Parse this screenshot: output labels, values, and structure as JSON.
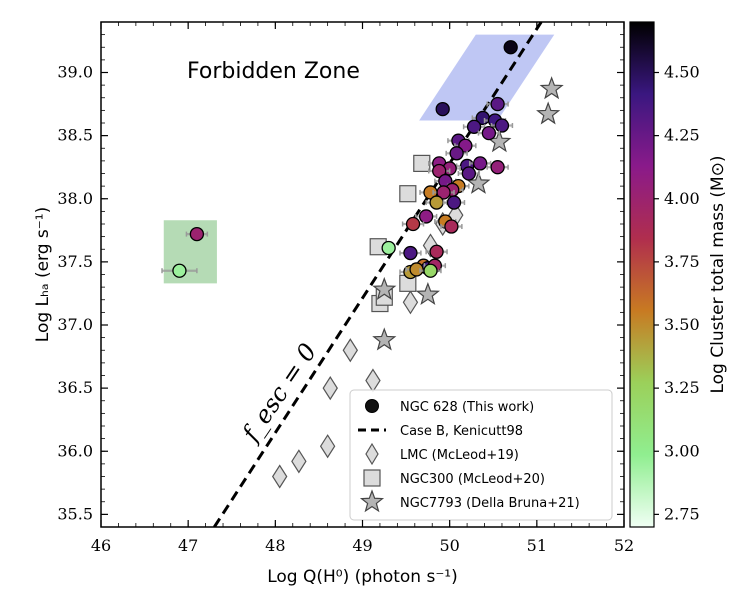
{
  "chart_data": {
    "type": "scatter",
    "xlabel": "Log Q(H⁰) (photon s⁻¹)",
    "ylabel": "Log Lₕₐ (erg s⁻¹)",
    "xlim": [
      46,
      52
    ],
    "ylim": [
      35.4,
      39.4
    ],
    "xticks": [
      46,
      47,
      48,
      49,
      50,
      51,
      52
    ],
    "yticks": [
      35.5,
      36.0,
      36.5,
      37.0,
      37.5,
      38.0,
      38.5,
      39.0
    ],
    "annotations": {
      "forbidden_zone": "Forbidden Zone",
      "fesc_label": "f_esc = 0"
    },
    "case_b_line": {
      "name": "Case B, Kenicutt98",
      "x": [
        47.3,
        51.05
      ],
      "y": [
        35.4,
        39.4
      ]
    },
    "shaded_regions": [
      {
        "color": "#aab4f0",
        "corners": [
          [
            49.65,
            38.62
          ],
          [
            50.55,
            38.62
          ],
          [
            51.2,
            39.3
          ],
          [
            50.3,
            39.3
          ]
        ]
      },
      {
        "color": "#9ccf9c",
        "corners": [
          [
            46.72,
            37.33
          ],
          [
            47.33,
            37.33
          ],
          [
            47.33,
            37.83
          ],
          [
            46.72,
            37.83
          ]
        ]
      }
    ],
    "colorbar": {
      "label": "Log Cluster total mass (M⊙)",
      "min": 2.7,
      "max": 4.7,
      "ticks": [
        2.75,
        3.0,
        3.25,
        3.5,
        3.75,
        4.0,
        4.25,
        4.5
      ],
      "tick_labels": [
        "2.75",
        "3.00",
        "3.25",
        "3.50",
        "3.75",
        "4.00",
        "4.25",
        "4.50"
      ],
      "stops": [
        "#f0fff4",
        "#90ee90",
        "#9bd05a",
        "#c87a22",
        "#b02e4e",
        "#8a1a8a",
        "#3a1780",
        "#000000"
      ]
    },
    "legend": {
      "position": "lower-right",
      "entries": [
        {
          "label": "NGC 628 (This work)",
          "marker": "circle"
        },
        {
          "label": "Case B, Kenicutt98",
          "marker": "dashed-line"
        },
        {
          "label": "LMC (McLeod+19)",
          "marker": "diamond"
        },
        {
          "label": "NGC300 (McLeod+20)",
          "marker": "square"
        },
        {
          "label": "NGC7793 (Della Bruna+21)",
          "marker": "star"
        }
      ]
    },
    "series": [
      {
        "name": "NGC 628 (This work)",
        "marker": "circle",
        "points": [
          {
            "x": 50.7,
            "y": 39.2,
            "m": 4.65,
            "xerr": 0.05
          },
          {
            "x": 49.92,
            "y": 38.71,
            "m": 4.5,
            "xerr": 0.05
          },
          {
            "x": 50.55,
            "y": 38.75,
            "m": 4.3,
            "xerr": 0.12
          },
          {
            "x": 50.38,
            "y": 38.64,
            "m": 4.45,
            "xerr": 0.12
          },
          {
            "x": 50.52,
            "y": 38.62,
            "m": 4.4,
            "xerr": 0.12
          },
          {
            "x": 50.6,
            "y": 38.58,
            "m": 4.35,
            "xerr": 0.12
          },
          {
            "x": 50.28,
            "y": 38.57,
            "m": 4.35,
            "xerr": 0.12
          },
          {
            "x": 50.45,
            "y": 38.52,
            "m": 4.2,
            "xerr": 0.12
          },
          {
            "x": 50.1,
            "y": 38.46,
            "m": 4.3,
            "xerr": 0.12
          },
          {
            "x": 50.18,
            "y": 38.42,
            "m": 4.15,
            "xerr": 0.12
          },
          {
            "x": 50.08,
            "y": 38.36,
            "m": 4.25,
            "xerr": 0.12
          },
          {
            "x": 49.88,
            "y": 38.28,
            "m": 4.1,
            "xerr": 0.12
          },
          {
            "x": 50.2,
            "y": 38.26,
            "m": 4.35,
            "xerr": 0.12
          },
          {
            "x": 50.35,
            "y": 38.28,
            "m": 4.2,
            "xerr": 0.12
          },
          {
            "x": 50.0,
            "y": 38.24,
            "m": 4.05,
            "xerr": 0.12
          },
          {
            "x": 49.88,
            "y": 38.22,
            "m": 4.0,
            "xerr": 0.12
          },
          {
            "x": 50.55,
            "y": 38.25,
            "m": 4.05,
            "xerr": 0.12
          },
          {
            "x": 50.22,
            "y": 38.2,
            "m": 4.3,
            "xerr": 0.12
          },
          {
            "x": 49.95,
            "y": 38.14,
            "m": 4.2,
            "xerr": 0.12
          },
          {
            "x": 50.1,
            "y": 38.1,
            "m": 3.55,
            "xerr": 0.12
          },
          {
            "x": 49.78,
            "y": 38.05,
            "m": 3.55,
            "xerr": 0.12
          },
          {
            "x": 50.03,
            "y": 38.07,
            "m": 4.0,
            "xerr": 0.12
          },
          {
            "x": 49.93,
            "y": 38.05,
            "m": 4.0,
            "xerr": 0.12
          },
          {
            "x": 49.85,
            "y": 37.97,
            "m": 3.45,
            "xerr": 0.12
          },
          {
            "x": 50.05,
            "y": 37.97,
            "m": 4.35,
            "xerr": 0.12
          },
          {
            "x": 49.73,
            "y": 37.86,
            "m": 4.1,
            "xerr": 0.12
          },
          {
            "x": 49.58,
            "y": 37.8,
            "m": 3.8,
            "xerr": 0.12
          },
          {
            "x": 49.95,
            "y": 37.82,
            "m": 3.55,
            "xerr": 0.12
          },
          {
            "x": 50.02,
            "y": 37.78,
            "m": 3.9,
            "xerr": 0.12
          },
          {
            "x": 49.55,
            "y": 37.57,
            "m": 4.35,
            "xerr": 0.12
          },
          {
            "x": 49.85,
            "y": 37.58,
            "m": 3.9,
            "xerr": 0.12
          },
          {
            "x": 49.7,
            "y": 37.47,
            "m": 3.6,
            "xerr": 0.12
          },
          {
            "x": 49.75,
            "y": 37.45,
            "m": 4.4,
            "xerr": 0.12
          },
          {
            "x": 49.83,
            "y": 37.47,
            "m": 3.95,
            "xerr": 0.12
          },
          {
            "x": 49.55,
            "y": 37.42,
            "m": 3.45,
            "xerr": 0.12
          },
          {
            "x": 49.62,
            "y": 37.44,
            "m": 3.5,
            "xerr": 0.12
          },
          {
            "x": 49.78,
            "y": 37.43,
            "m": 3.2,
            "xerr": 0.12
          },
          {
            "x": 49.3,
            "y": 37.61,
            "m": 2.95,
            "xerr": 0.05
          },
          {
            "x": 47.1,
            "y": 37.72,
            "m": 4.0,
            "xerr": 0.12
          },
          {
            "x": 46.9,
            "y": 37.43,
            "m": 2.95,
            "xerr": 0.2
          }
        ]
      },
      {
        "name": "LMC (McLeod+19)",
        "marker": "diamond",
        "points": [
          {
            "x": 48.05,
            "y": 35.8
          },
          {
            "x": 48.27,
            "y": 35.92
          },
          {
            "x": 48.6,
            "y": 36.04
          },
          {
            "x": 48.63,
            "y": 36.5
          },
          {
            "x": 48.86,
            "y": 36.8
          },
          {
            "x": 49.12,
            "y": 36.56
          },
          {
            "x": 49.55,
            "y": 37.18
          },
          {
            "x": 49.78,
            "y": 37.63
          },
          {
            "x": 50.07,
            "y": 37.87
          },
          {
            "x": 49.92,
            "y": 37.8
          }
        ]
      },
      {
        "name": "NGC300 (McLeod+20)",
        "marker": "square",
        "points": [
          {
            "x": 49.18,
            "y": 37.62
          },
          {
            "x": 49.52,
            "y": 38.04
          },
          {
            "x": 49.68,
            "y": 38.28
          },
          {
            "x": 49.2,
            "y": 37.17
          },
          {
            "x": 49.25,
            "y": 37.22
          },
          {
            "x": 49.52,
            "y": 37.33
          }
        ]
      },
      {
        "name": "NGC7793 (Della Bruna+21)",
        "marker": "star",
        "points": [
          {
            "x": 51.17,
            "y": 38.87
          },
          {
            "x": 51.13,
            "y": 38.67
          },
          {
            "x": 50.57,
            "y": 38.45
          },
          {
            "x": 50.33,
            "y": 38.12
          },
          {
            "x": 49.25,
            "y": 37.28
          },
          {
            "x": 49.75,
            "y": 37.24
          },
          {
            "x": 49.25,
            "y": 36.88
          }
        ]
      }
    ]
  }
}
